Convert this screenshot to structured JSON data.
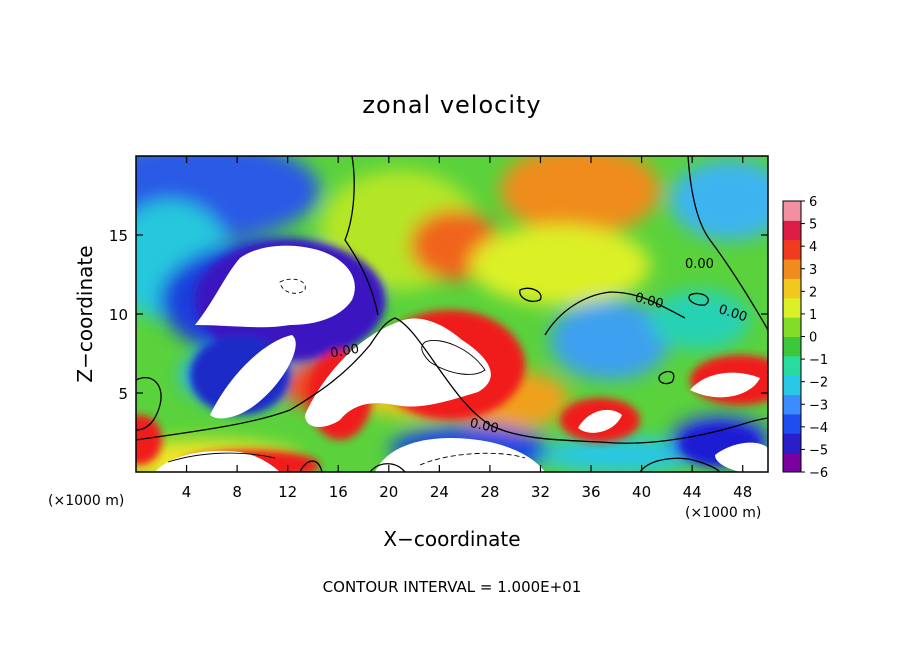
{
  "chart_data": {
    "type": "heatmap",
    "title": "zonal velocity",
    "xlabel": "X−coordinate",
    "ylabel": "Z−coordinate",
    "x_units": "(×1000 m)",
    "y_units": "(×1000 m)",
    "xlim": [
      0,
      50
    ],
    "ylim": [
      0,
      20
    ],
    "x_ticks": [
      4,
      8,
      12,
      16,
      20,
      24,
      28,
      32,
      36,
      40,
      44,
      48
    ],
    "y_ticks": [
      5,
      10,
      15
    ],
    "colorbar": {
      "min": -6,
      "max": 6,
      "ticks": [
        6,
        5,
        4,
        3,
        2,
        1,
        0,
        -1,
        -2,
        -3,
        -4,
        -5,
        -6
      ],
      "colors": [
        "#7a00a0",
        "#2a1ec8",
        "#1e4ef0",
        "#3c8cff",
        "#28c8e6",
        "#28dca0",
        "#3cc83c",
        "#82dc28",
        "#dcf028",
        "#f0c81e",
        "#f08c1e",
        "#f03c1e",
        "#dc1e46",
        "#f090a0"
      ]
    },
    "contour_labels": [
      "0.00",
      "0.00",
      "0.00",
      "0.00",
      "0.00"
    ],
    "contour_interval_text": "CONTOUR INTERVAL = 1.000E+01"
  }
}
